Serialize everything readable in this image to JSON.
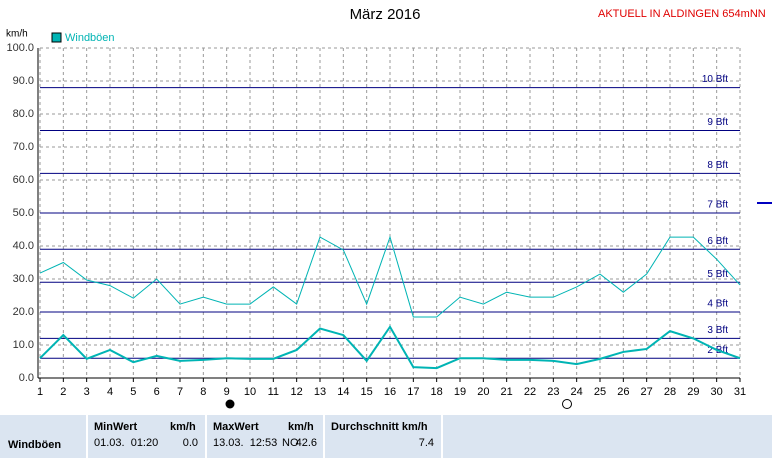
{
  "chart_data": {
    "type": "line",
    "title": "März 2016",
    "subtitle": "AKTUELL IN ALDINGEN 654mNN",
    "y_label": "km/h",
    "x": [
      1,
      2,
      3,
      4,
      5,
      6,
      7,
      8,
      9,
      10,
      11,
      12,
      13,
      14,
      15,
      16,
      17,
      18,
      19,
      20,
      21,
      22,
      23,
      24,
      25,
      26,
      27,
      28,
      29,
      30,
      31
    ],
    "xlim": [
      1,
      31
    ],
    "xticks": [
      1,
      2,
      3,
      4,
      5,
      6,
      7,
      8,
      9,
      10,
      11,
      12,
      13,
      14,
      15,
      16,
      17,
      18,
      19,
      20,
      21,
      22,
      23,
      24,
      25,
      26,
      27,
      28,
      29,
      30,
      31
    ],
    "ylim": [
      0,
      100
    ],
    "yticks": [
      {
        "value": 0,
        "label": "0.0"
      },
      {
        "value": 10,
        "label": "10.0"
      },
      {
        "value": 20,
        "label": "20.0"
      },
      {
        "value": 30,
        "label": "30.0"
      },
      {
        "value": 40,
        "label": "40.0"
      },
      {
        "value": 50,
        "label": "50.0"
      },
      {
        "value": 60,
        "label": "60.0"
      },
      {
        "value": 70,
        "label": "70.0"
      },
      {
        "value": 80,
        "label": "80.0"
      },
      {
        "value": 90,
        "label": "90.0"
      },
      {
        "value": 100,
        "label": "100.0"
      }
    ],
    "grid": true,
    "bft_lines": [
      {
        "value": 6,
        "label": "2 Bft"
      },
      {
        "value": 12,
        "label": "3 Bft"
      },
      {
        "value": 20,
        "label": "4 Bft"
      },
      {
        "value": 29,
        "label": "5 Bft"
      },
      {
        "value": 39,
        "label": "6 Bft"
      },
      {
        "value": 50,
        "label": "7 Bft"
      },
      {
        "value": 62,
        "label": "8 Bft"
      },
      {
        "value": 75,
        "label": "9 Bft"
      },
      {
        "value": 88,
        "label": "10 Bft"
      }
    ],
    "bft_color": "#000080",
    "series": [
      {
        "name": "Windböen",
        "color": "#00b4b4",
        "values": [
          31.8,
          35,
          29.7,
          28,
          24.2,
          30,
          22.4,
          24.5,
          22.4,
          22.4,
          27.6,
          22.4,
          42.7,
          38.8,
          22.4,
          42.7,
          18.5,
          18.5,
          24.5,
          22.4,
          26,
          24.5,
          24.5,
          27.6,
          31.5,
          26,
          31.5,
          42.7,
          42.7,
          36,
          28.2
        ]
      },
      {
        "color": "#00b4b4",
        "values": [
          6,
          13,
          5.8,
          8.5,
          4.8,
          6.7,
          5.2,
          5.5,
          6,
          5.8,
          5.8,
          8.5,
          15,
          13,
          5.2,
          15.5,
          3.3,
          3,
          6,
          6,
          5.5,
          5.5,
          5.2,
          4.2,
          5.8,
          7.9,
          8.8,
          14.2,
          12,
          8.5,
          6
        ]
      }
    ]
  },
  "table": {
    "headers": [
      "MinWert",
      "km/h",
      "MaxWert",
      "km/h",
      "Durchschnitt km/h"
    ],
    "rows": [
      [
        "Windböen",
        "01.03.  01:20",
        "0.0",
        "13.03.  12:53",
        "NO",
        "42.6",
        "7.4"
      ]
    ]
  }
}
